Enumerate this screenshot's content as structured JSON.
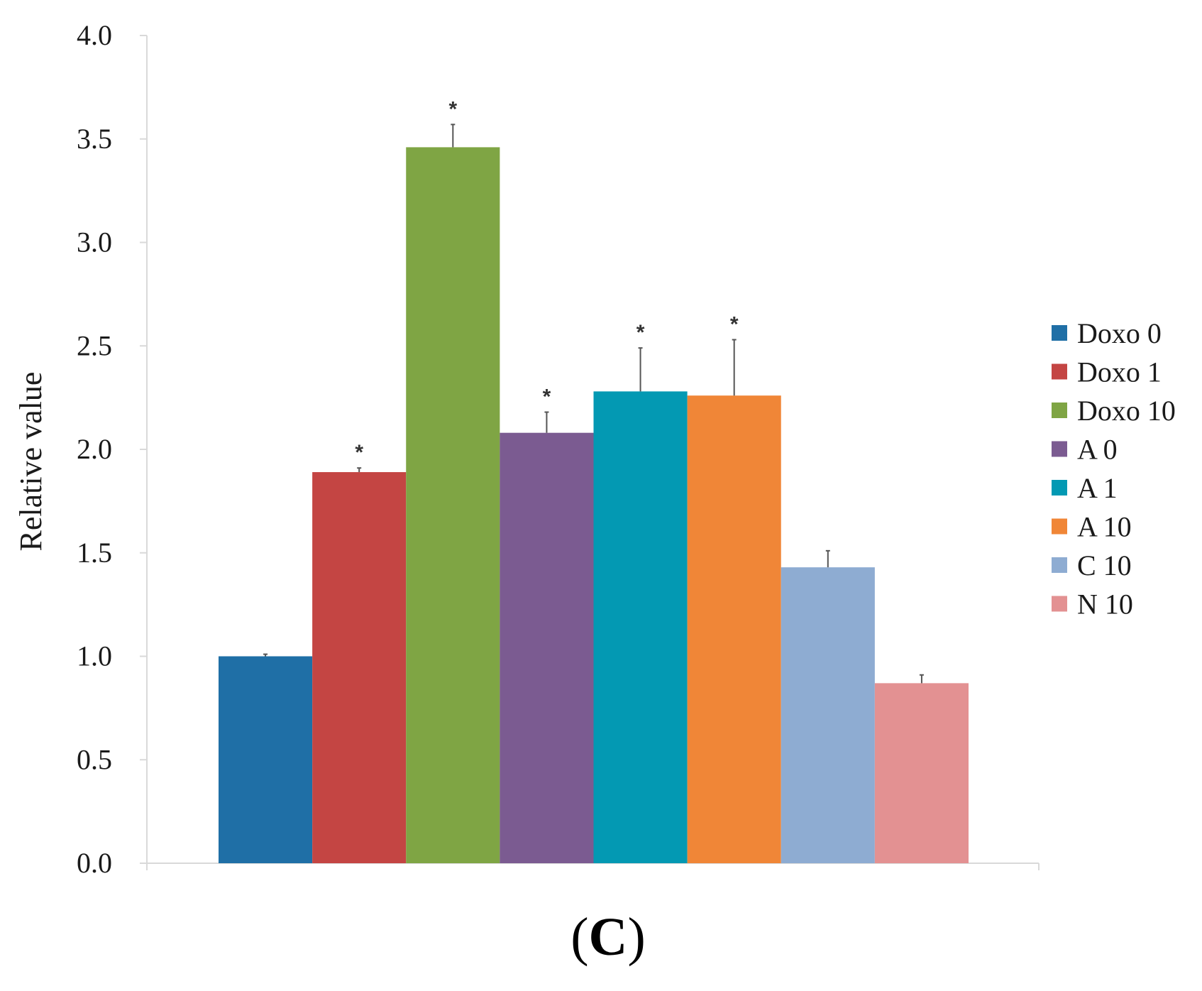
{
  "chart_data": {
    "type": "bar",
    "title": "",
    "xlabel": "",
    "ylabel": "Relative value",
    "ylim": [
      0,
      4.0
    ],
    "yticks": [
      "0.0",
      "0.5",
      "1.0",
      "1.5",
      "2.0",
      "2.5",
      "3.0",
      "3.5",
      "4.0"
    ],
    "grid": false,
    "legend_position": "right",
    "series": [
      {
        "name": "Doxo 0",
        "value": 1.0,
        "error": 0.01,
        "significant": false,
        "color": "#1f6fa6"
      },
      {
        "name": "Doxo 1",
        "value": 1.89,
        "error": 0.02,
        "significant": true,
        "color": "#c44543"
      },
      {
        "name": "Doxo 10",
        "value": 3.46,
        "error": 0.11,
        "significant": true,
        "color": "#7fa544"
      },
      {
        "name": "A 0",
        "value": 2.08,
        "error": 0.1,
        "significant": true,
        "color": "#7b5b91"
      },
      {
        "name": "A 1",
        "value": 2.28,
        "error": 0.21,
        "significant": true,
        "color": "#0399b3"
      },
      {
        "name": "A 10",
        "value": 2.26,
        "error": 0.27,
        "significant": true,
        "color": "#f08637"
      },
      {
        "name": "C 10",
        "value": 1.43,
        "error": 0.08,
        "significant": false,
        "color": "#8eacd2"
      },
      {
        "name": "N 10",
        "value": 0.87,
        "error": 0.04,
        "significant": false,
        "color": "#e39192"
      }
    ],
    "significance_marker": "*"
  },
  "panel_label": {
    "open": "(",
    "letter": "C",
    "close": ")"
  }
}
